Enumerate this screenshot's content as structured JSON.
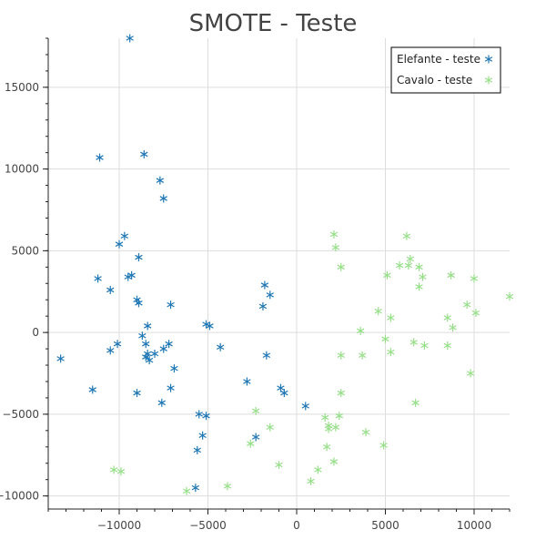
{
  "chart_data": {
    "type": "scatter",
    "title": "SMOTE - Teste",
    "xlabel": "",
    "ylabel": "",
    "xlim": [
      -14000,
      12000
    ],
    "ylim": [
      -10800,
      18000
    ],
    "xticks": [
      -10000,
      -5000,
      0,
      5000,
      10000
    ],
    "yticks": [
      -10000,
      -5000,
      0,
      5000,
      10000,
      15000
    ],
    "xtick_labels": [
      "−10000",
      "−5000",
      "0",
      "5000",
      "10000"
    ],
    "ytick_labels": [
      "−10000",
      "−5000",
      "0",
      "5000",
      "10000",
      "15000"
    ],
    "grid": true,
    "legend_position": "top-right",
    "marker": "asterisk",
    "series": [
      {
        "name": "Elefante - teste",
        "color": "#1f77b4",
        "points": [
          [
            -9400,
            18000
          ],
          [
            -11100,
            10700
          ],
          [
            -8600,
            10900
          ],
          [
            -7700,
            9300
          ],
          [
            -7500,
            8200
          ],
          [
            -9700,
            5900
          ],
          [
            -10000,
            5400
          ],
          [
            -8900,
            4600
          ],
          [
            -11200,
            3300
          ],
          [
            -10500,
            2600
          ],
          [
            -9300,
            3500
          ],
          [
            -9500,
            3400
          ],
          [
            -9000,
            2000
          ],
          [
            -8900,
            1800
          ],
          [
            -7100,
            1700
          ],
          [
            -8400,
            400
          ],
          [
            -8700,
            -200
          ],
          [
            -8500,
            -700
          ],
          [
            -7200,
            -700
          ],
          [
            -7500,
            -1000
          ],
          [
            -8000,
            -1300
          ],
          [
            -8400,
            -1300
          ],
          [
            -8300,
            -1700
          ],
          [
            -8500,
            -1500
          ],
          [
            -6900,
            -2200
          ],
          [
            -10100,
            -700
          ],
          [
            -10500,
            -1100
          ],
          [
            -13300,
            -1600
          ],
          [
            -9000,
            -3700
          ],
          [
            -7600,
            -4300
          ],
          [
            -7100,
            -3400
          ],
          [
            -5100,
            500
          ],
          [
            -4900,
            400
          ],
          [
            -4300,
            -900
          ],
          [
            -1900,
            1600
          ],
          [
            -1800,
            2900
          ],
          [
            -1500,
            2300
          ],
          [
            -1700,
            -1400
          ],
          [
            -900,
            -3400
          ],
          [
            -700,
            -3700
          ],
          [
            500,
            -4500
          ],
          [
            -2800,
            -3000
          ],
          [
            -5500,
            -5000
          ],
          [
            -5100,
            -5100
          ],
          [
            -5300,
            -6300
          ],
          [
            -5600,
            -7200
          ],
          [
            -5700,
            -9500
          ],
          [
            -2300,
            -6400
          ],
          [
            -11500,
            -3500
          ]
        ]
      },
      {
        "name": "Cavalo - teste",
        "color": "#98df8a",
        "points": [
          [
            2100,
            6000
          ],
          [
            2200,
            5200
          ],
          [
            2500,
            4000
          ],
          [
            6200,
            5900
          ],
          [
            6400,
            4500
          ],
          [
            5800,
            4100
          ],
          [
            6300,
            4100
          ],
          [
            6900,
            4000
          ],
          [
            5100,
            3500
          ],
          [
            7100,
            3400
          ],
          [
            6900,
            2800
          ],
          [
            8700,
            3500
          ],
          [
            10000,
            3300
          ],
          [
            12000,
            2200
          ],
          [
            9600,
            1700
          ],
          [
            10100,
            1200
          ],
          [
            8500,
            900
          ],
          [
            8800,
            300
          ],
          [
            4600,
            1300
          ],
          [
            5300,
            900
          ],
          [
            3600,
            100
          ],
          [
            5000,
            -400
          ],
          [
            6600,
            -600
          ],
          [
            7200,
            -800
          ],
          [
            8500,
            -800
          ],
          [
            5300,
            -1200
          ],
          [
            3700,
            -1400
          ],
          [
            2500,
            -1400
          ],
          [
            9800,
            -2500
          ],
          [
            2500,
            -3700
          ],
          [
            6700,
            -4300
          ],
          [
            2400,
            -5100
          ],
          [
            1600,
            -5200
          ],
          [
            1800,
            -5700
          ],
          [
            1800,
            -5900
          ],
          [
            2200,
            -5800
          ],
          [
            -2300,
            -4800
          ],
          [
            -1500,
            -5800
          ],
          [
            -2600,
            -6800
          ],
          [
            3900,
            -6100
          ],
          [
            1700,
            -7000
          ],
          [
            4900,
            -6900
          ],
          [
            2100,
            -7900
          ],
          [
            -1000,
            -8100
          ],
          [
            1200,
            -8400
          ],
          [
            -10300,
            -8400
          ],
          [
            -9900,
            -8500
          ],
          [
            800,
            -9100
          ],
          [
            -3900,
            -9400
          ],
          [
            -6200,
            -9700
          ]
        ]
      }
    ]
  }
}
